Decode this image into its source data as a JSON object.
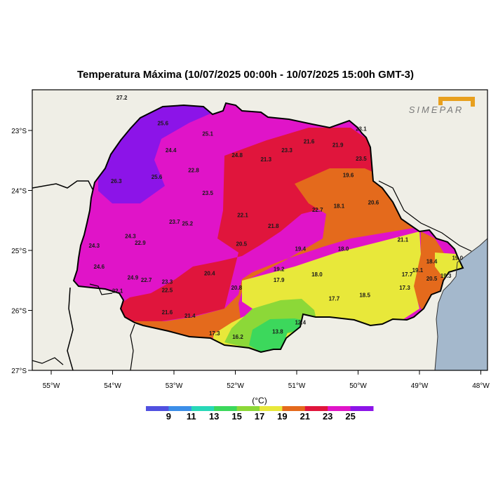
{
  "title": "Temperatura Máxima (10/07/2025 00:00h - 10/07/2025 15:00h GMT-3)",
  "logo_text": "SIMEPAR",
  "unit": "(°C)",
  "colors": {
    "ocean": "#a4b8cc",
    "land": "#efeee6",
    "c9": "#5050e0",
    "c11": "#3c8ee8",
    "c13": "#28d8b8",
    "c15": "#3cd85c",
    "c17": "#8cd838",
    "c19": "#e8e83a",
    "c21": "#e46a1c",
    "c23": "#e0153c",
    "c25": "#e014c8",
    "c27": "#8c14e8"
  },
  "x_ticks": [
    "55°W",
    "54°W",
    "53°W",
    "52°W",
    "51°W",
    "50°W",
    "49°W",
    "48°W"
  ],
  "y_ticks": [
    "23°S",
    "24°S",
    "25°S",
    "26°S",
    "27°S"
  ],
  "colorbar_labels": [
    "9",
    "11",
    "13",
    "15",
    "17",
    "19",
    "21",
    "23",
    "25"
  ],
  "stations": [
    {
      "v": "27.2",
      "x": -53.85,
      "y": -22.45
    },
    {
      "v": "25.6",
      "x": -53.18,
      "y": -22.88
    },
    {
      "v": "25.1",
      "x": -52.45,
      "y": -23.05
    },
    {
      "v": "23.1",
      "x": -49.95,
      "y": -22.97
    },
    {
      "v": "24.4",
      "x": -53.05,
      "y": -23.33
    },
    {
      "v": "24.8",
      "x": -51.97,
      "y": -23.41
    },
    {
      "v": "21.6",
      "x": -50.8,
      "y": -23.18
    },
    {
      "v": "21.9",
      "x": -50.33,
      "y": -23.24
    },
    {
      "v": "23.3",
      "x": -51.16,
      "y": -23.33
    },
    {
      "v": "21.3",
      "x": -51.5,
      "y": -23.48
    },
    {
      "v": "23.5",
      "x": -49.95,
      "y": -23.47
    },
    {
      "v": "22.8",
      "x": -52.68,
      "y": -23.66
    },
    {
      "v": "25.6",
      "x": -53.28,
      "y": -23.77
    },
    {
      "v": "26.3",
      "x": -53.94,
      "y": -23.84
    },
    {
      "v": "19.6",
      "x": -50.16,
      "y": -23.74
    },
    {
      "v": "23.5",
      "x": -52.45,
      "y": -24.04
    },
    {
      "v": "20.6",
      "x": -49.75,
      "y": -24.2
    },
    {
      "v": "18.1",
      "x": -50.31,
      "y": -24.26
    },
    {
      "v": "22.7",
      "x": -50.66,
      "y": -24.32
    },
    {
      "v": "22.1",
      "x": -51.88,
      "y": -24.41
    },
    {
      "v": "23.7",
      "x": -52.99,
      "y": -24.52
    },
    {
      "v": "25.2",
      "x": -52.78,
      "y": -24.55
    },
    {
      "v": "21.8",
      "x": -51.38,
      "y": -24.59
    },
    {
      "v": "24.3",
      "x": -53.71,
      "y": -24.76
    },
    {
      "v": "22.9",
      "x": -53.55,
      "y": -24.87
    },
    {
      "v": "24.3",
      "x": -54.3,
      "y": -24.92
    },
    {
      "v": "20.5",
      "x": -51.9,
      "y": -24.89
    },
    {
      "v": "21.1",
      "x": -49.27,
      "y": -24.82
    },
    {
      "v": "19.4",
      "x": -50.94,
      "y": -24.97
    },
    {
      "v": "18.0",
      "x": -50.24,
      "y": -24.97
    },
    {
      "v": "19.0",
      "x": -48.38,
      "y": -25.12
    },
    {
      "v": "18.4",
      "x": -48.8,
      "y": -25.18
    },
    {
      "v": "24.6",
      "x": -54.22,
      "y": -25.27
    },
    {
      "v": "19.2",
      "x": -51.29,
      "y": -25.31
    },
    {
      "v": "20.4",
      "x": -52.42,
      "y": -25.38
    },
    {
      "v": "19.1",
      "x": -49.03,
      "y": -25.33
    },
    {
      "v": "18.0",
      "x": -50.67,
      "y": -25.4
    },
    {
      "v": "17.7",
      "x": -49.2,
      "y": -25.4
    },
    {
      "v": "19.3",
      "x": -48.57,
      "y": -25.42
    },
    {
      "v": "20.5",
      "x": -48.8,
      "y": -25.47
    },
    {
      "v": "24.9",
      "x": -53.67,
      "y": -25.45
    },
    {
      "v": "22.7",
      "x": -53.45,
      "y": -25.49
    },
    {
      "v": "23.3",
      "x": -53.11,
      "y": -25.52
    },
    {
      "v": "17.9",
      "x": -51.29,
      "y": -25.49
    },
    {
      "v": "20.8",
      "x": -51.98,
      "y": -25.62
    },
    {
      "v": "17.3",
      "x": -49.24,
      "y": -25.62
    },
    {
      "v": "22.1",
      "x": -53.92,
      "y": -25.67
    },
    {
      "v": "22.5",
      "x": -53.11,
      "y": -25.66
    },
    {
      "v": "18.5",
      "x": -49.89,
      "y": -25.74
    },
    {
      "v": "17.7",
      "x": -50.39,
      "y": -25.8
    },
    {
      "v": "21.6",
      "x": -53.11,
      "y": -26.03
    },
    {
      "v": "21.4",
      "x": -52.74,
      "y": -26.09
    },
    {
      "v": "12.4",
      "x": -50.94,
      "y": -26.2
    },
    {
      "v": "17.3",
      "x": -52.34,
      "y": -26.38
    },
    {
      "v": "13.8",
      "x": -51.31,
      "y": -26.35
    },
    {
      "v": "16.2",
      "x": -51.96,
      "y": -26.44
    }
  ]
}
